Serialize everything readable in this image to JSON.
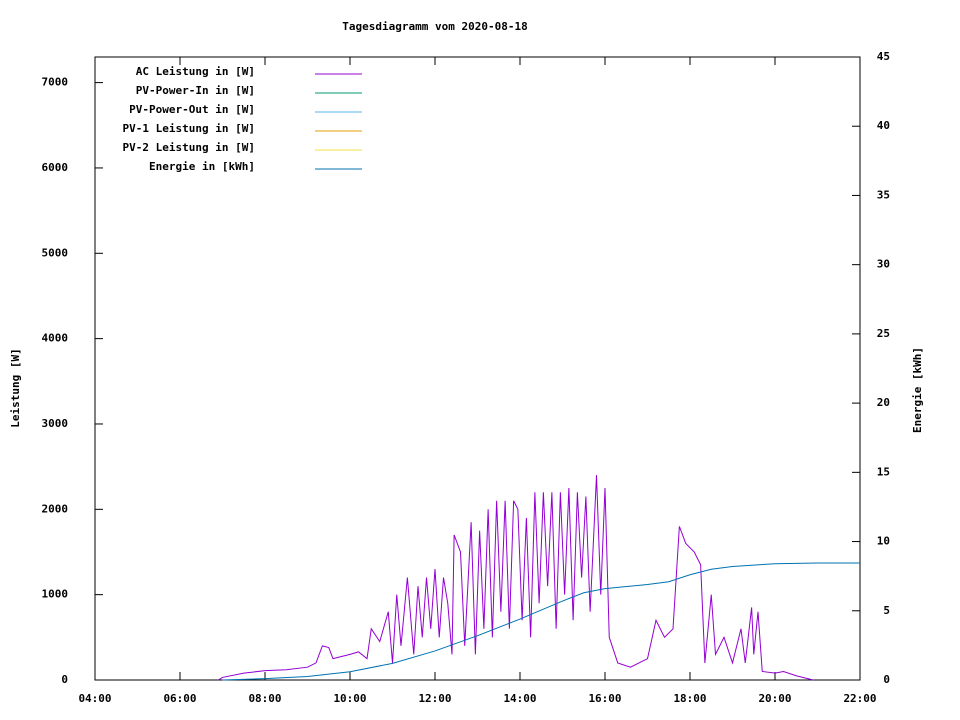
{
  "chart_data": {
    "type": "line",
    "title": "Tagesdiagramm vom 2020-08-18",
    "y_label": "Leistung [W]",
    "y2_label": "Energie [kWh]",
    "xlim": [
      4,
      22
    ],
    "xticks": [
      {
        "value": 4,
        "label": "04:00"
      },
      {
        "value": 6,
        "label": "06:00"
      },
      {
        "value": 8,
        "label": "08:00"
      },
      {
        "value": 10,
        "label": "10:00"
      },
      {
        "value": 12,
        "label": "12:00"
      },
      {
        "value": 14,
        "label": "14:00"
      },
      {
        "value": 16,
        "label": "16:00"
      },
      {
        "value": 18,
        "label": "18:00"
      },
      {
        "value": 20,
        "label": "20:00"
      },
      {
        "value": 22,
        "label": "22:00"
      }
    ],
    "ylim": [
      0,
      7300
    ],
    "yticks": [
      0,
      1000,
      2000,
      3000,
      4000,
      5000,
      6000,
      7000
    ],
    "y2lim": [
      0,
      45
    ],
    "y2ticks": [
      0,
      5,
      10,
      15,
      20,
      25,
      30,
      35,
      40,
      45
    ],
    "legend": "top-left",
    "series": [
      {
        "name": "AC Leistung in [W]",
        "color": "#9400d3",
        "x": [
          6.9,
          7.0,
          7.5,
          8.0,
          8.5,
          9.0,
          9.2,
          9.35,
          9.5,
          9.6,
          10.0,
          10.2,
          10.4,
          10.5,
          10.7,
          10.9,
          11.0,
          11.1,
          11.2,
          11.35,
          11.5,
          11.6,
          11.7,
          11.8,
          11.9,
          12.0,
          12.1,
          12.2,
          12.3,
          12.4,
          12.45,
          12.6,
          12.7,
          12.85,
          12.95,
          13.05,
          13.15,
          13.25,
          13.35,
          13.45,
          13.55,
          13.65,
          13.75,
          13.85,
          13.95,
          14.05,
          14.15,
          14.25,
          14.35,
          14.45,
          14.55,
          14.65,
          14.75,
          14.85,
          14.95,
          15.05,
          15.15,
          15.25,
          15.35,
          15.45,
          15.55,
          15.65,
          15.8,
          15.9,
          16.0,
          16.1,
          16.3,
          16.6,
          17.0,
          17.2,
          17.4,
          17.6,
          17.75,
          17.9,
          18.1,
          18.25,
          18.35,
          18.5,
          18.6,
          18.8,
          19.0,
          19.2,
          19.3,
          19.45,
          19.5,
          19.6,
          19.7,
          20.0,
          20.2,
          20.5,
          20.9
        ],
        "values": [
          0,
          30,
          80,
          110,
          120,
          150,
          200,
          400,
          380,
          250,
          300,
          330,
          250,
          600,
          450,
          800,
          200,
          1000,
          400,
          1200,
          300,
          1100,
          500,
          1200,
          600,
          1300,
          500,
          1200,
          900,
          300,
          1700,
          1500,
          400,
          1850,
          300,
          1750,
          600,
          2000,
          500,
          2100,
          800,
          2100,
          600,
          2100,
          2000,
          700,
          1900,
          500,
          2200,
          900,
          2200,
          1100,
          2200,
          600,
          2200,
          1000,
          2250,
          700,
          2200,
          1200,
          2150,
          800,
          2400,
          1000,
          2250,
          500,
          200,
          150,
          250,
          700,
          500,
          600,
          1800,
          1600,
          1500,
          1350,
          200,
          1000,
          300,
          500,
          200,
          600,
          200,
          850,
          300,
          800,
          100,
          80,
          100,
          50,
          0
        ]
      },
      {
        "name": "PV-Power-In in [W]",
        "color": "#009e73",
        "x": [],
        "values": []
      },
      {
        "name": "PV-Power-Out in [W]",
        "color": "#56b4e9",
        "x": [],
        "values": []
      },
      {
        "name": "PV-1 Leistung in [W]",
        "color": "#e69f00",
        "x": [],
        "values": []
      },
      {
        "name": "PV-2 Leistung in [W]",
        "color": "#f0e442",
        "x": [],
        "values": []
      },
      {
        "name": "Energie in [kWh]",
        "color": "#0072b2",
        "axis": "y2",
        "x": [
          7.0,
          8.0,
          9.0,
          10.0,
          11.0,
          12.0,
          13.0,
          14.0,
          15.0,
          15.5,
          16.0,
          17.0,
          17.5,
          18.0,
          18.5,
          19.0,
          20.0,
          21.0,
          22.0
        ],
        "values": [
          0,
          0.1,
          0.25,
          0.6,
          1.2,
          2.1,
          3.2,
          4.4,
          5.7,
          6.3,
          6.6,
          6.9,
          7.1,
          7.6,
          8.0,
          8.2,
          8.4,
          8.45,
          8.45
        ]
      }
    ]
  }
}
